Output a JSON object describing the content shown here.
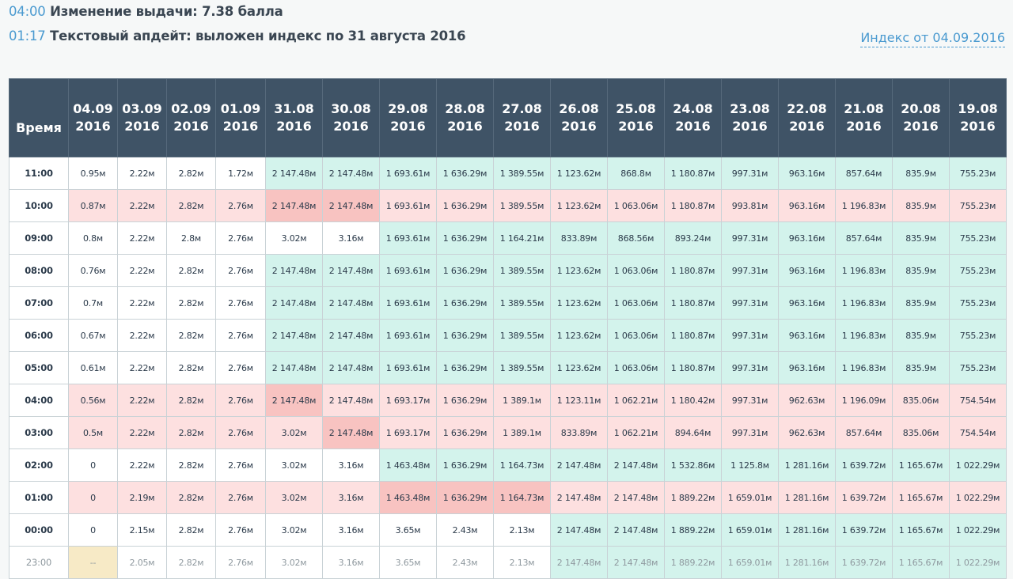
{
  "events": [
    {
      "time": "04:00",
      "text": "Изменение выдачи: 7.38 балла"
    },
    {
      "time": "01:17",
      "text": "Текстовый апдейт: выложен индекс по 31 августа 2016"
    }
  ],
  "index_link": "Индекс от 04.09.2016",
  "colors": {
    "green": "#d3f3ec",
    "pink": "#fde0e0",
    "red": "#f8c3c1",
    "yellow": "#f7eac6",
    "white": "#ffffff",
    "header": "#3f5366",
    "link": "#4a9ad0"
  },
  "table": {
    "time_header": "Время",
    "date_headers": [
      [
        "04.09",
        "2016"
      ],
      [
        "03.09",
        "2016"
      ],
      [
        "02.09",
        "2016"
      ],
      [
        "01.09",
        "2016"
      ],
      [
        "31.08",
        "2016"
      ],
      [
        "30.08",
        "2016"
      ],
      [
        "29.08",
        "2016"
      ],
      [
        "28.08",
        "2016"
      ],
      [
        "27.08",
        "2016"
      ],
      [
        "26.08",
        "2016"
      ],
      [
        "25.08",
        "2016"
      ],
      [
        "24.08",
        "2016"
      ],
      [
        "23.08",
        "2016"
      ],
      [
        "22.08",
        "2016"
      ],
      [
        "21.08",
        "2016"
      ],
      [
        "20.08",
        "2016"
      ],
      [
        "19.08",
        "2016"
      ]
    ],
    "rows": [
      {
        "time": "11:00",
        "values": [
          "0.95м",
          "2.22м",
          "2.82м",
          "1.72м",
          "2 147.48м",
          "2 147.48м",
          "1 693.61м",
          "1 636.29м",
          "1 389.55м",
          "1 123.62м",
          "868.8м",
          "1 180.87м",
          "997.31м",
          "963.16м",
          "857.64м",
          "835.9м",
          "755.23м"
        ],
        "colors": "wwwwggggggggggggg"
      },
      {
        "time": "10:00",
        "values": [
          "0.87м",
          "2.22м",
          "2.82м",
          "2.76м",
          "2 147.48м",
          "2 147.48м",
          "1 693.61м",
          "1 636.29м",
          "1 389.55м",
          "1 123.62м",
          "1 063.06м",
          "1 180.87м",
          "993.81м",
          "963.16м",
          "1 196.83м",
          "835.9м",
          "755.23м"
        ],
        "colors": "rrrrRRrrrrrrrrrrr"
      },
      {
        "time": "09:00",
        "values": [
          "0.8м",
          "2.22м",
          "2.8м",
          "2.76м",
          "3.02м",
          "3.16м",
          "1 693.61м",
          "1 636.29м",
          "1 164.21м",
          "833.89м",
          "868.56м",
          "893.24м",
          "997.31м",
          "963.16м",
          "857.64м",
          "835.9м",
          "755.23м"
        ],
        "colors": "wwwwwwggggggggggg"
      },
      {
        "time": "08:00",
        "values": [
          "0.76м",
          "2.22м",
          "2.82м",
          "2.76м",
          "2 147.48м",
          "2 147.48м",
          "1 693.61м",
          "1 636.29м",
          "1 389.55м",
          "1 123.62м",
          "1 063.06м",
          "1 180.87м",
          "997.31м",
          "963.16м",
          "1 196.83м",
          "835.9м",
          "755.23м"
        ],
        "colors": "wwwwggggggggggggg"
      },
      {
        "time": "07:00",
        "values": [
          "0.7м",
          "2.22м",
          "2.82м",
          "2.76м",
          "2 147.48м",
          "2 147.48м",
          "1 693.61м",
          "1 636.29м",
          "1 389.55м",
          "1 123.62м",
          "1 063.06м",
          "1 180.87м",
          "997.31м",
          "963.16м",
          "1 196.83м",
          "835.9м",
          "755.23м"
        ],
        "colors": "wwwwggggggggggggg"
      },
      {
        "time": "06:00",
        "values": [
          "0.67м",
          "2.22м",
          "2.82м",
          "2.76м",
          "2 147.48м",
          "2 147.48м",
          "1 693.61м",
          "1 636.29м",
          "1 389.55м",
          "1 123.62м",
          "1 063.06м",
          "1 180.87м",
          "997.31м",
          "963.16м",
          "1 196.83м",
          "835.9м",
          "755.23м"
        ],
        "colors": "wwwwggggggggggggg"
      },
      {
        "time": "05:00",
        "values": [
          "0.61м",
          "2.22м",
          "2.82м",
          "2.76м",
          "2 147.48м",
          "2 147.48м",
          "1 693.61м",
          "1 636.29м",
          "1 389.55м",
          "1 123.62м",
          "1 063.06м",
          "1 180.87м",
          "997.31м",
          "963.16м",
          "1 196.83м",
          "835.9м",
          "755.23м"
        ],
        "colors": "wwwwggggggggggggg"
      },
      {
        "time": "04:00",
        "values": [
          "0.56м",
          "2.22м",
          "2.82м",
          "2.76м",
          "2 147.48м",
          "2 147.48м",
          "1 693.17м",
          "1 636.29м",
          "1 389.1м",
          "1 123.11м",
          "1 062.21м",
          "1 180.42м",
          "997.31м",
          "962.63м",
          "1 196.09м",
          "835.06м",
          "754.54м"
        ],
        "colors": "rrrrRrrrrrrrrrrrr"
      },
      {
        "time": "03:00",
        "values": [
          "0.5м",
          "2.22м",
          "2.82м",
          "2.76м",
          "3.02м",
          "2 147.48м",
          "1 693.17м",
          "1 636.29м",
          "1 389.1м",
          "833.89м",
          "1 062.21м",
          "894.64м",
          "997.31м",
          "962.63м",
          "857.64м",
          "835.06м",
          "754.54м"
        ],
        "colors": "rrrrrRrrrrrrrrrrr"
      },
      {
        "time": "02:00",
        "values": [
          "0",
          "2.22м",
          "2.82м",
          "2.76м",
          "3.02м",
          "3.16м",
          "1 463.48м",
          "1 636.29м",
          "1 164.73м",
          "2 147.48м",
          "2 147.48м",
          "1 532.86м",
          "1 125.8м",
          "1 281.16м",
          "1 639.72м",
          "1 165.67м",
          "1 022.29м"
        ],
        "colors": "wwwwwwggggggggggg"
      },
      {
        "time": "01:00",
        "values": [
          "0",
          "2.19м",
          "2.82м",
          "2.76м",
          "3.02м",
          "3.16м",
          "1 463.48м",
          "1 636.29м",
          "1 164.73м",
          "2 147.48м",
          "2 147.48м",
          "1 889.22м",
          "1 659.01м",
          "1 281.16м",
          "1 639.72м",
          "1 165.67м",
          "1 022.29м"
        ],
        "colors": "rrrrrrRRRrrrrrrrr"
      },
      {
        "time": "00:00",
        "values": [
          "0",
          "2.15м",
          "2.82м",
          "2.76м",
          "3.02м",
          "3.16м",
          "3.65м",
          "2.43м",
          "2.13м",
          "2 147.48м",
          "2 147.48м",
          "1 889.22м",
          "1 659.01м",
          "1 281.16м",
          "1 639.72м",
          "1 165.67м",
          "1 022.29м"
        ],
        "colors": "wwwwwwwwwgggggggg"
      },
      {
        "time": "23:00",
        "values": [
          "--",
          "2.05м",
          "2.82м",
          "2.76м",
          "3.02м",
          "3.16м",
          "3.65м",
          "2.43м",
          "2.13м",
          "2 147.48м",
          "2 147.48м",
          "1 889.22м",
          "1 659.01м",
          "1 281.16м",
          "1 639.72м",
          "1 165.67м",
          "1 022.29м"
        ],
        "colors": "ywwwwwwwwgggggggg",
        "dim": true
      }
    ]
  }
}
